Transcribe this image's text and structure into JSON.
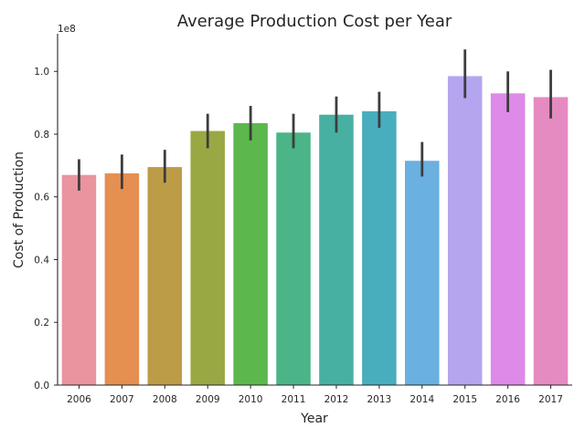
{
  "chart_data": {
    "type": "bar",
    "title": "Average Production Cost per Year",
    "xlabel": "Year",
    "ylabel": "Cost of Production",
    "y_offset_label": "1e8",
    "y_scale": 100000000,
    "ylim": [
      0,
      1.12
    ],
    "yticks": [
      0.0,
      0.2,
      0.4,
      0.6,
      0.8,
      1.0
    ],
    "ytick_labels": [
      "0.0",
      "0.2",
      "0.4",
      "0.6",
      "0.8",
      "1.0"
    ],
    "grid": false,
    "legend": "none",
    "categories": [
      "2006",
      "2007",
      "2008",
      "2009",
      "2010",
      "2011",
      "2012",
      "2013",
      "2014",
      "2015",
      "2016",
      "2017"
    ],
    "values": [
      0.67,
      0.675,
      0.695,
      0.81,
      0.835,
      0.805,
      0.862,
      0.873,
      0.715,
      0.985,
      0.93,
      0.918
    ],
    "ci_lower": [
      0.62,
      0.625,
      0.645,
      0.755,
      0.78,
      0.755,
      0.805,
      0.82,
      0.665,
      0.915,
      0.87,
      0.85
    ],
    "ci_upper": [
      0.72,
      0.735,
      0.75,
      0.865,
      0.89,
      0.865,
      0.92,
      0.935,
      0.775,
      1.07,
      1.0,
      1.005
    ],
    "colors": [
      "#e9949e",
      "#e58f51",
      "#bd9c47",
      "#9aa844",
      "#5cb84d",
      "#4bb587",
      "#48b0a2",
      "#48aebe",
      "#6ab0e0",
      "#b4a5ee",
      "#dd8ae8",
      "#e68ac2"
    ]
  }
}
